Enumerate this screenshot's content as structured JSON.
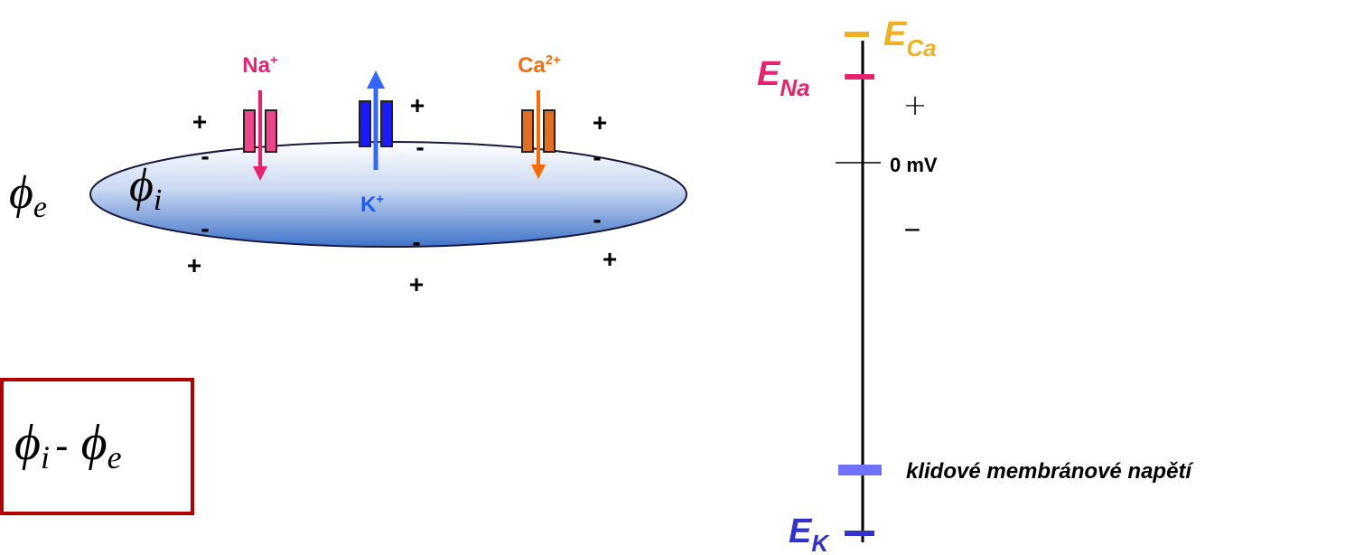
{
  "ions": [
    {
      "symbol": "Na",
      "charge": "+"
    },
    {
      "symbol": "K",
      "charge": "+"
    },
    {
      "symbol": "Ca",
      "charge": "2+"
    }
  ],
  "membrane_charges": [
    "+",
    "-",
    "+",
    "-",
    "+",
    "-",
    "-",
    "+",
    "-",
    "+",
    "-",
    "+"
  ],
  "potentials": {
    "outside": {
      "symbol": "ϕ",
      "subscript": "e"
    },
    "inside": {
      "symbol": "ϕ",
      "subscript": "i"
    }
  },
  "formula": {
    "left_symbol": "ϕ",
    "left_subscript": "i",
    "operator": "-",
    "right_symbol": "ϕ",
    "right_subscript": "e"
  },
  "scale": {
    "e_ca": {
      "symbol": "E",
      "subscript": "Ca"
    },
    "e_na": {
      "symbol": "E",
      "subscript": "Na"
    },
    "e_k": {
      "symbol": "E",
      "subscript": "K"
    },
    "plus": "+",
    "zero": "0 mV",
    "minus": "−",
    "resting": "klidové membránové napětí"
  }
}
